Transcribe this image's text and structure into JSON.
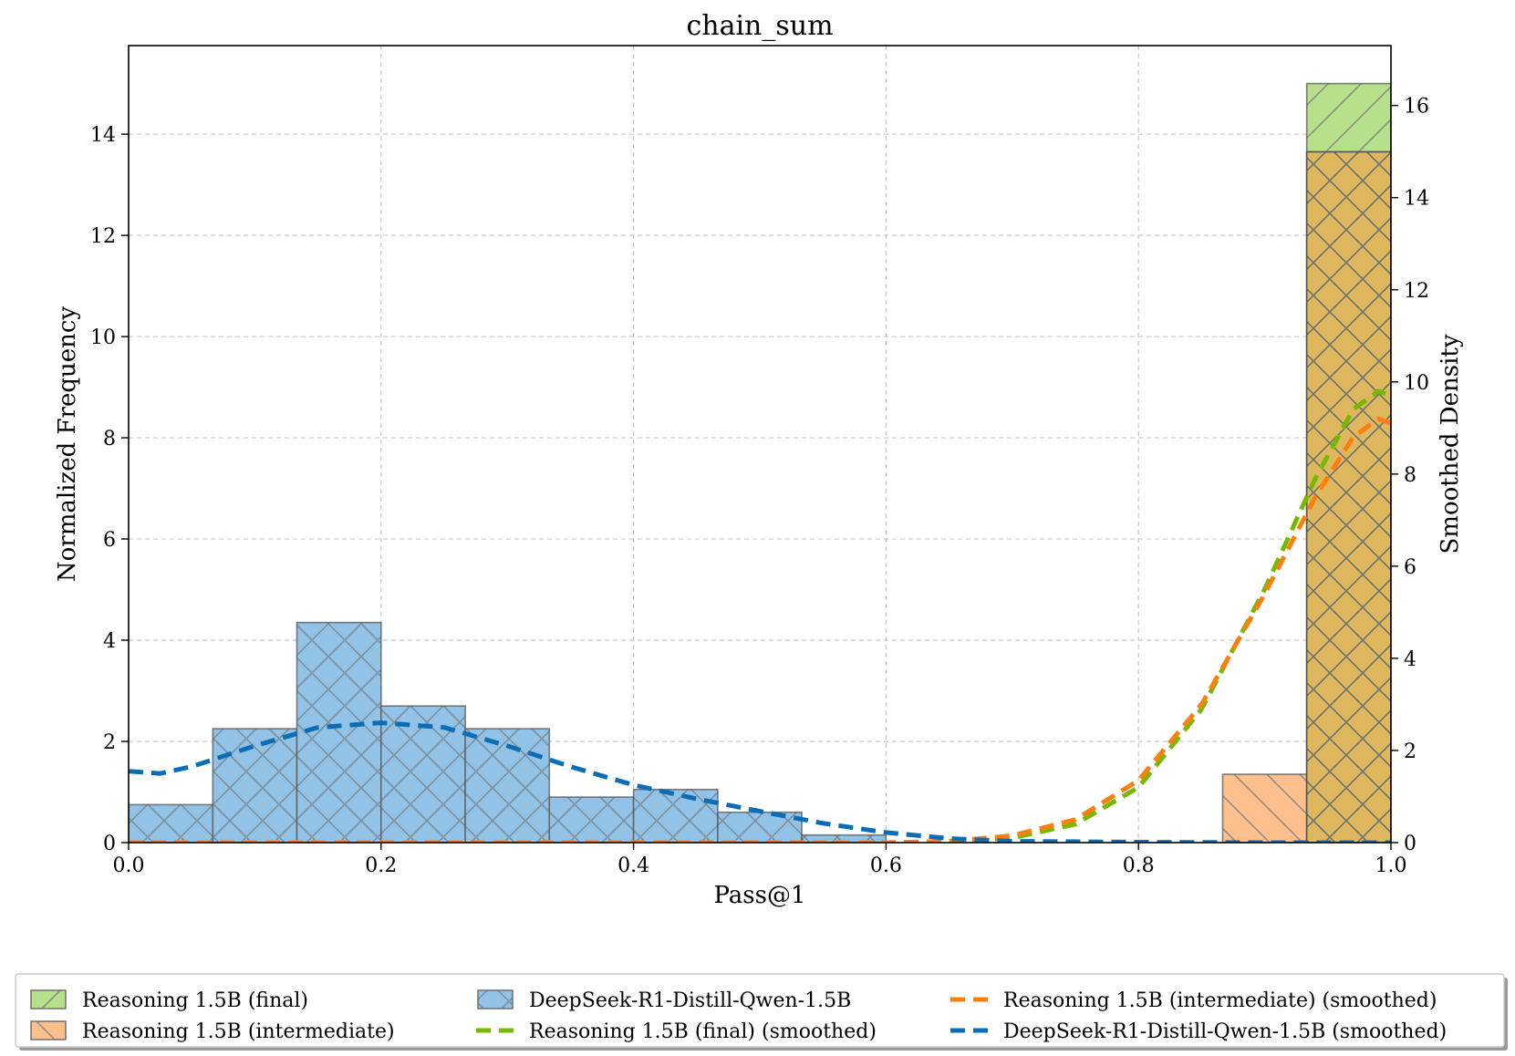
{
  "chart_data": {
    "type": "bar",
    "title": "chain_sum",
    "xlabel": "Pass@1",
    "ylabel": "Normalized Frequency",
    "ylabel_right": "Smoothed Density",
    "xlim": [
      0.0,
      1.0
    ],
    "ylim": [
      0,
      15.75
    ],
    "ylim_right": [
      0,
      17.3
    ],
    "x_ticks": [
      "0.0",
      "0.2",
      "0.4",
      "0.6",
      "0.8",
      "1.0"
    ],
    "y_ticks": [
      "0",
      "2",
      "4",
      "6",
      "8",
      "10",
      "12",
      "14"
    ],
    "y_ticks_right": [
      "0",
      "2",
      "4",
      "6",
      "8",
      "10",
      "12",
      "14",
      "16"
    ],
    "grid": true,
    "legend_position": "bottom",
    "bin_edges": [
      0.0,
      0.0667,
      0.1333,
      0.2,
      0.2667,
      0.3333,
      0.4,
      0.4667,
      0.5333,
      0.6,
      0.6667,
      0.7333,
      0.8,
      0.8667,
      0.9333,
      1.0
    ],
    "series": [
      {
        "name": "Reasoning 1.5B (final)",
        "kind": "histogram",
        "color": "#b6e08a",
        "values": [
          0,
          0,
          0,
          0,
          0,
          0,
          0,
          0,
          0,
          0,
          0,
          0,
          0,
          0,
          15.0
        ]
      },
      {
        "name": "Reasoning 1.5B (intermediate)",
        "kind": "histogram",
        "color": "#fdc08c",
        "values": [
          0,
          0,
          0,
          0,
          0,
          0,
          0,
          0,
          0,
          0,
          0,
          0,
          0,
          1.35,
          13.65
        ]
      },
      {
        "name": "DeepSeek-R1-Distill-Qwen-1.5B",
        "kind": "histogram",
        "color": "#92c2e6",
        "values": [
          0.75,
          2.25,
          4.35,
          2.7,
          2.25,
          0.9,
          1.05,
          0.6,
          0.15,
          0,
          0,
          0,
          0,
          0,
          0
        ]
      },
      {
        "name": "Reasoning 1.5B (final) (smoothed)",
        "kind": "density",
        "color": "#76b900",
        "x": [
          0.0,
          0.6,
          0.65,
          0.7,
          0.75,
          0.8,
          0.85,
          0.9,
          0.94,
          0.97,
          0.99,
          1.0
        ],
        "y": [
          0.0,
          0.0,
          0.02,
          0.1,
          0.4,
          1.2,
          2.9,
          5.5,
          7.9,
          9.4,
          9.8,
          9.7
        ]
      },
      {
        "name": "Reasoning 1.5B (intermediate) (smoothed)",
        "kind": "density",
        "color": "#ff7f0e",
        "x": [
          0.0,
          0.6,
          0.65,
          0.7,
          0.75,
          0.8,
          0.85,
          0.9,
          0.94,
          0.97,
          0.99,
          1.0
        ],
        "y": [
          0.0,
          0.0,
          0.03,
          0.15,
          0.5,
          1.35,
          3.0,
          5.4,
          7.5,
          8.8,
          9.2,
          9.1
        ]
      },
      {
        "name": "DeepSeek-R1-Distill-Qwen-1.5B (smoothed)",
        "kind": "density",
        "color": "#0a6db5",
        "x": [
          0.0,
          0.025,
          0.05,
          0.1,
          0.15,
          0.2,
          0.25,
          0.3,
          0.35,
          0.4,
          0.45,
          0.5,
          0.55,
          0.6,
          0.65,
          0.7,
          0.8,
          0.9,
          1.0
        ],
        "y": [
          1.55,
          1.5,
          1.65,
          2.1,
          2.5,
          2.6,
          2.5,
          2.1,
          1.65,
          1.25,
          0.95,
          0.68,
          0.42,
          0.22,
          0.09,
          0.03,
          0.01,
          0.0,
          0.0
        ]
      }
    ]
  }
}
